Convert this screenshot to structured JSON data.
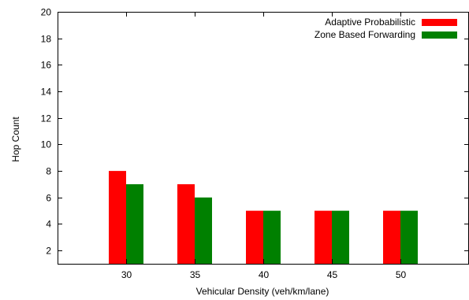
{
  "chart_data": {
    "type": "bar",
    "xlabel": "Vehicular Density (veh/km/lane)",
    "ylabel": "Hop Count",
    "categories": [
      "30",
      "35",
      "40",
      "45",
      "50"
    ],
    "x_values": [
      30,
      35,
      40,
      45,
      50
    ],
    "xlim": [
      25,
      55
    ],
    "ylim": [
      1,
      20
    ],
    "yticks": [
      2,
      4,
      6,
      8,
      10,
      12,
      14,
      16,
      18,
      20
    ],
    "grid": false,
    "legend_position": "top-right",
    "series": [
      {
        "name": "Adaptive Probabilistic",
        "color": "#ff0000",
        "values": [
          8,
          7,
          5,
          5,
          5
        ]
      },
      {
        "name": "Zone Based Forwarding",
        "color": "#008000",
        "values": [
          7,
          6,
          5,
          5,
          5
        ]
      }
    ]
  }
}
